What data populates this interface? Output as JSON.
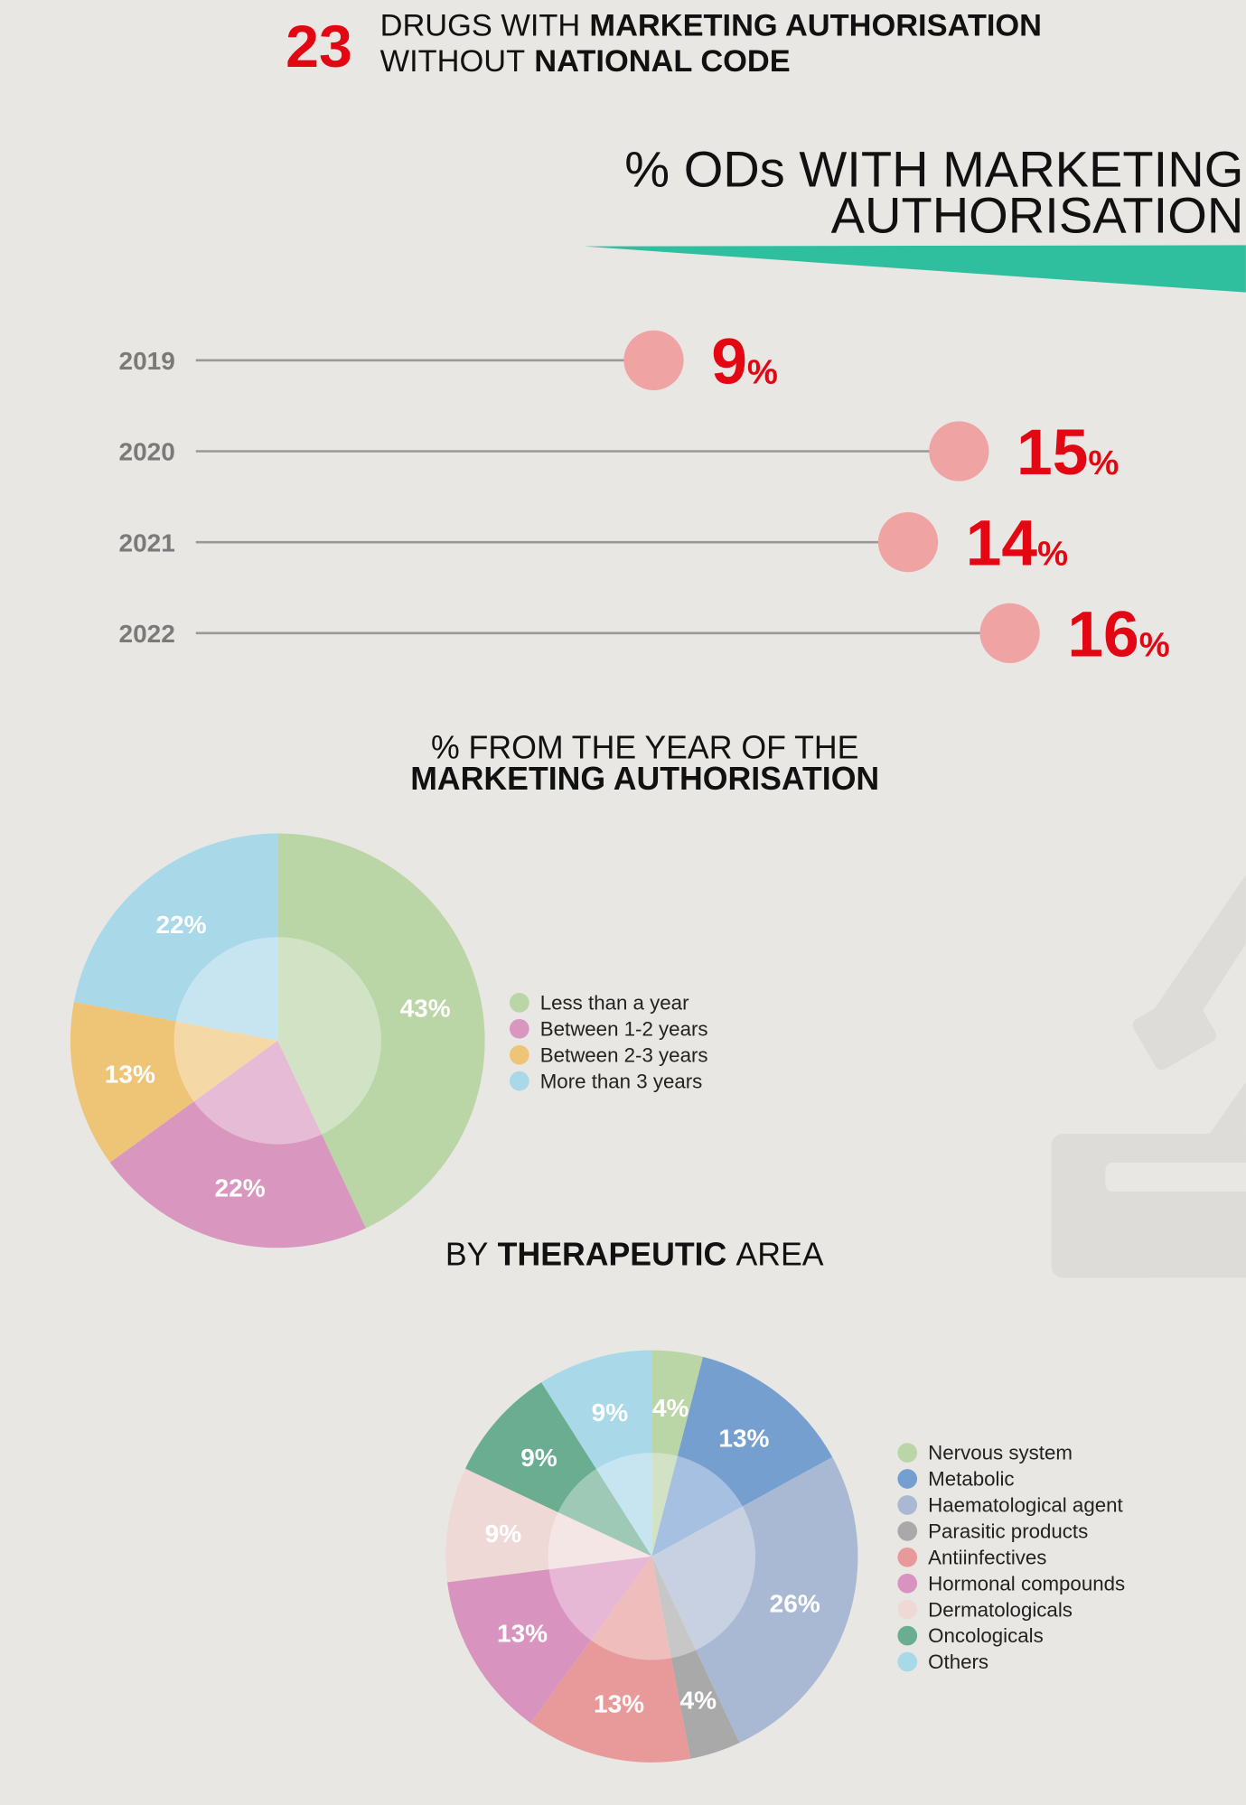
{
  "header": {
    "number": 23,
    "line1": [
      "DRUGS WITH",
      "MARKETING AUTHORISATION"
    ],
    "line2": [
      "WITHOUT",
      "NATIONAL CODE"
    ]
  },
  "chart_data": [
    {
      "type": "lollipop",
      "title": [
        "% ODs WITH MARKETING",
        "AUTHORISATION"
      ],
      "categories": [
        "2019",
        "2020",
        "2021",
        "2022"
      ],
      "values": [
        9,
        15,
        14,
        16
      ],
      "value_labels": [
        "9%",
        "15%",
        "14%",
        "16%"
      ],
      "color": "#f0a3a3",
      "label_color": "#e30613"
    },
    {
      "type": "pie",
      "title": [
        "% FROM THE YEAR OF THE",
        "MARKETING AUTHORISATION"
      ],
      "categories": [
        "Less than a year",
        "Between 1-2 years",
        "Between 2-3 years",
        "More than 3 years"
      ],
      "values": [
        43,
        22,
        13,
        22
      ],
      "value_labels": [
        "43%",
        "22%",
        "13%",
        "22%"
      ],
      "colors": [
        "#bad5a6",
        "#d997bf",
        "#eec577",
        "#a9d8e8"
      ]
    },
    {
      "type": "pie",
      "title": [
        "BY",
        "THERAPEUTIC",
        "AREA"
      ],
      "categories": [
        "Nervous system",
        "Metabolic",
        "Haematological agent",
        "Parasitic products",
        "Antiinfectives",
        "Hormonal compounds",
        "Dermatologicals",
        "Oncologicals",
        "Others"
      ],
      "values": [
        4,
        13,
        26,
        4,
        13,
        13,
        9,
        9,
        9
      ],
      "value_labels": [
        "4%",
        "13%",
        "26%",
        "4%",
        "13%",
        "13%",
        "9%",
        "9%",
        "9%"
      ],
      "colors": [
        "#bad5a6",
        "#759fcf",
        "#a9b9d3",
        "#a9a9a9",
        "#e89a9a",
        "#d993bf",
        "#efd9d6",
        "#6aad90",
        "#a9d8e8"
      ]
    }
  ]
}
